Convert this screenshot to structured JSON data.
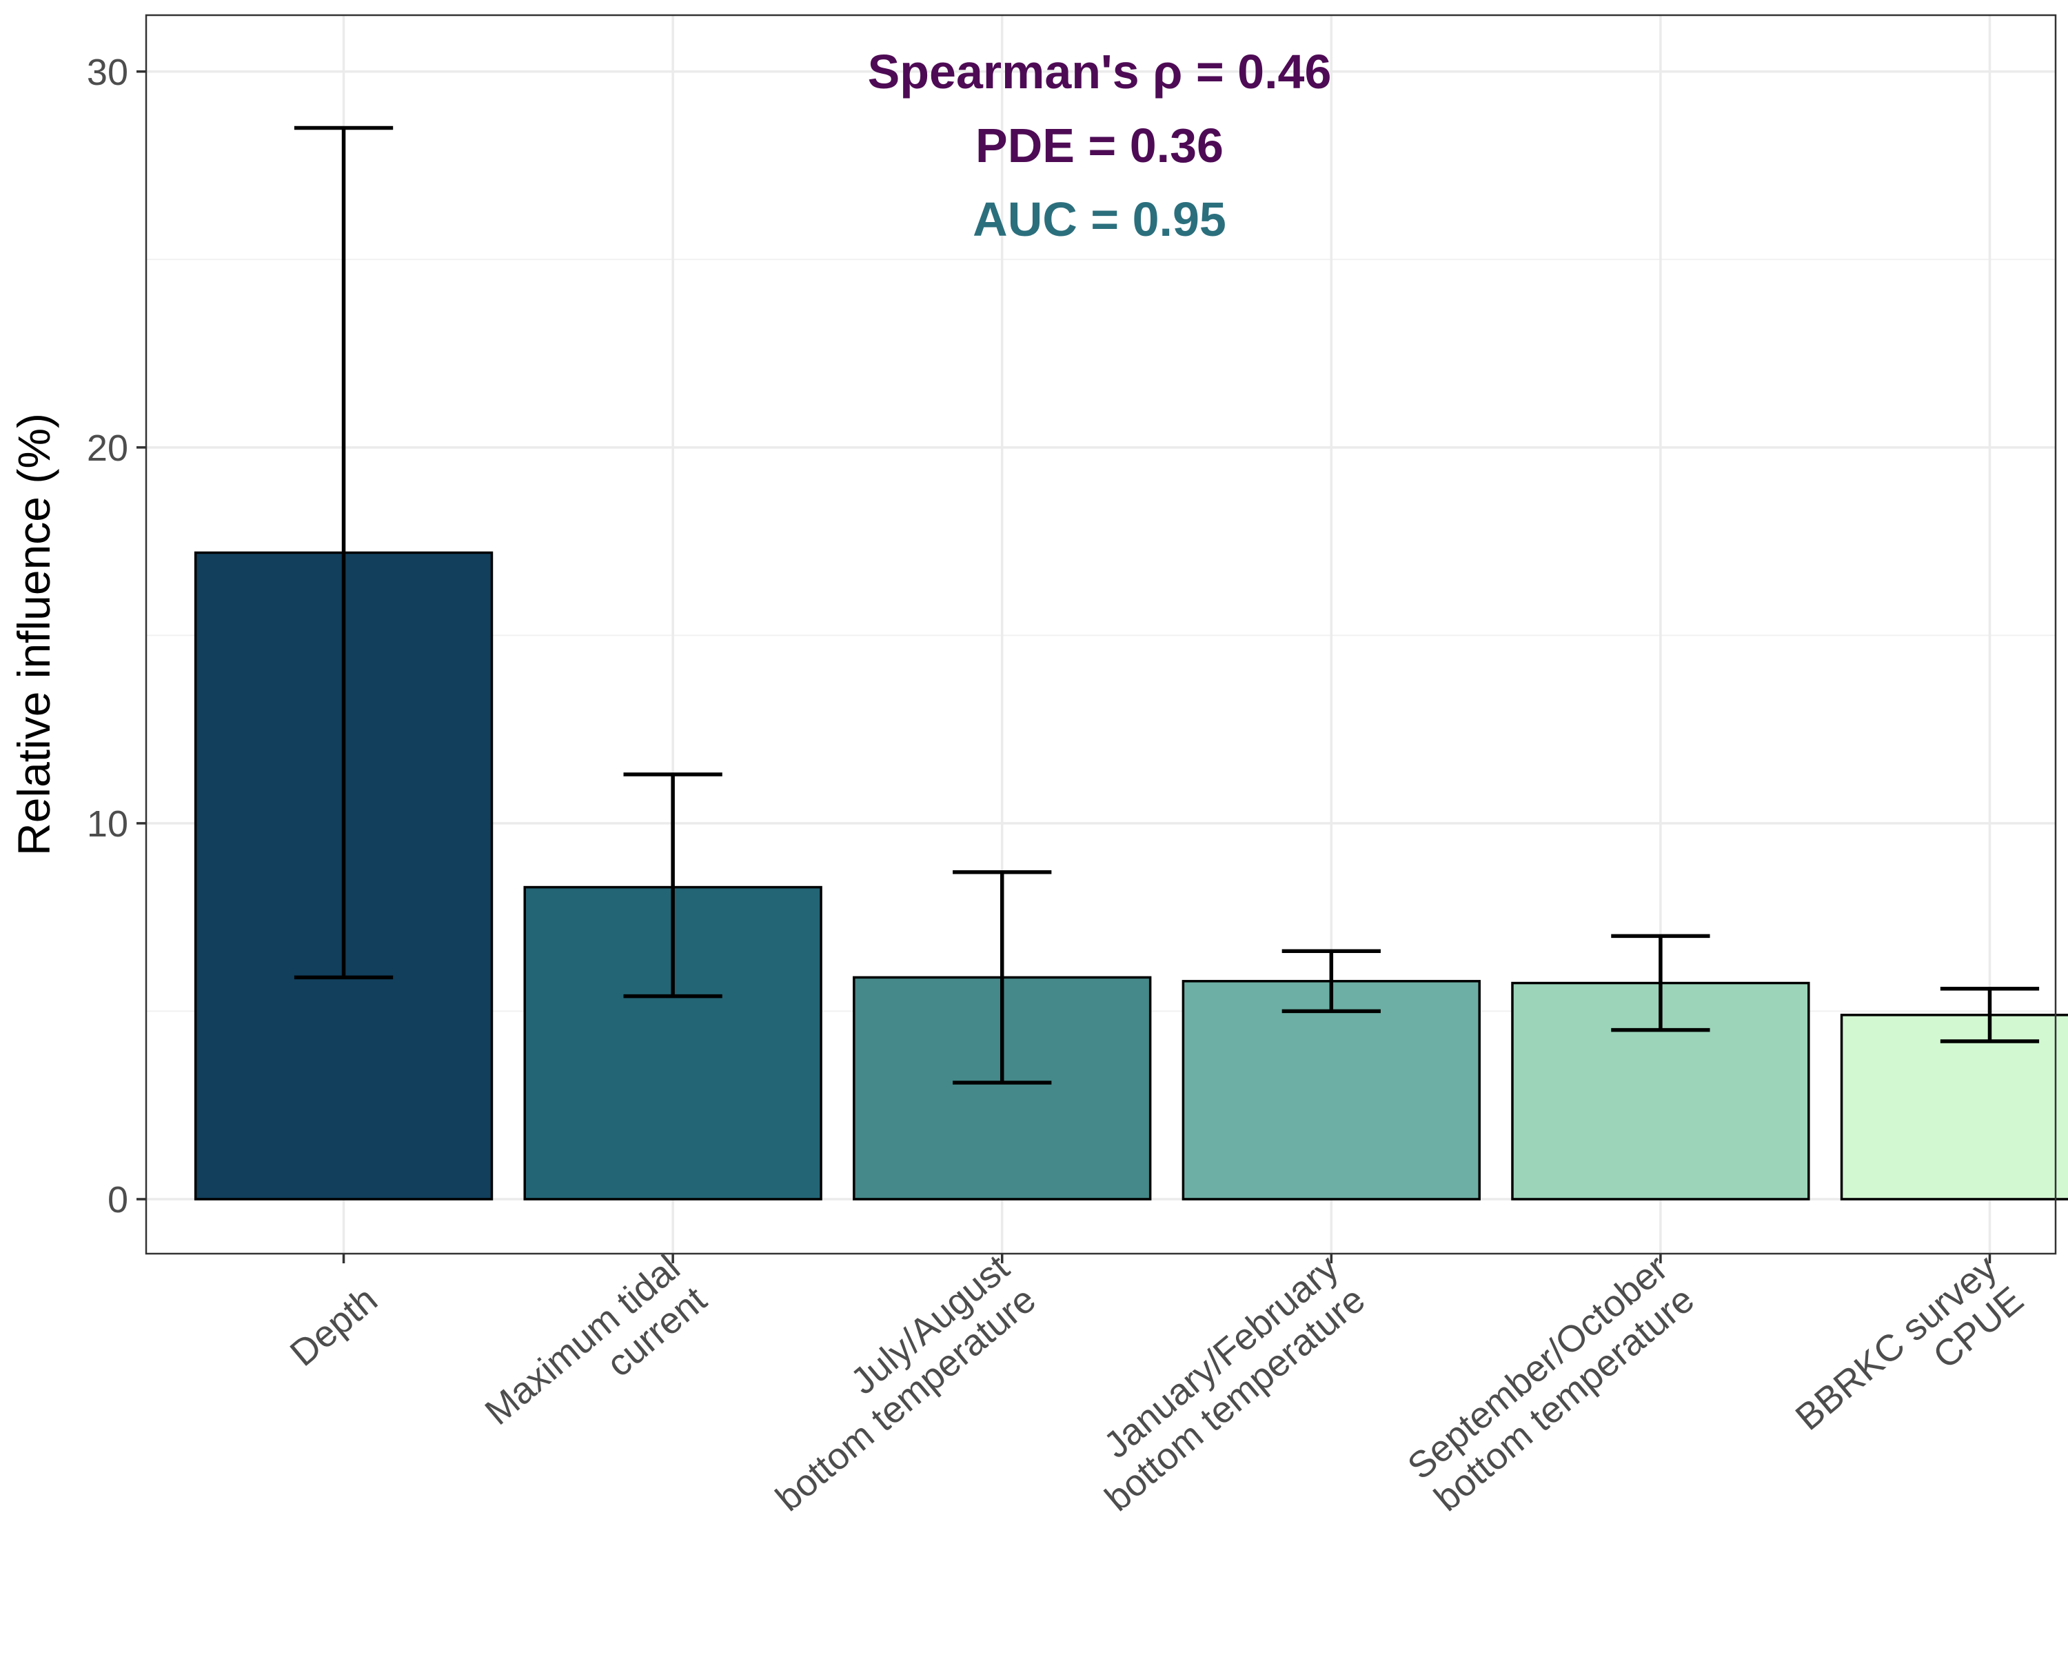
{
  "chart_data": {
    "type": "bar",
    "categories": [
      [
        "Depth"
      ],
      [
        "Maximum tidal",
        "current"
      ],
      [
        "July/August",
        "bottom temperature"
      ],
      [
        "January/February",
        "bottom temperature"
      ],
      [
        "September/October",
        "bottom temperature"
      ],
      [
        "BBRKC survey",
        "CPUE"
      ]
    ],
    "values": [
      17.2,
      8.3,
      5.9,
      5.8,
      5.75,
      4.9
    ],
    "error_low": [
      5.9,
      5.4,
      3.1,
      5.0,
      4.5,
      4.2
    ],
    "error_high": [
      28.5,
      11.3,
      8.7,
      6.6,
      7.0,
      5.6
    ],
    "bar_colors": [
      "#113F5C",
      "#236575",
      "#45898A",
      "#6DAFA4",
      "#9BD4B9",
      "#D2F8D2"
    ],
    "ylabel": "Relative influence (%)",
    "xlabel": "",
    "ylim": [
      -1.45,
      31.5
    ],
    "yticks": [
      0,
      10,
      20,
      30
    ],
    "grid": true,
    "annotations": [
      {
        "text": "Spearman's ρ =  0.46",
        "color": "#4E0B55"
      },
      {
        "text": "PDE =  0.36",
        "color": "#4E0B55"
      },
      {
        "text": "AUC =  0.95",
        "color": "#2B6F7D"
      }
    ]
  }
}
